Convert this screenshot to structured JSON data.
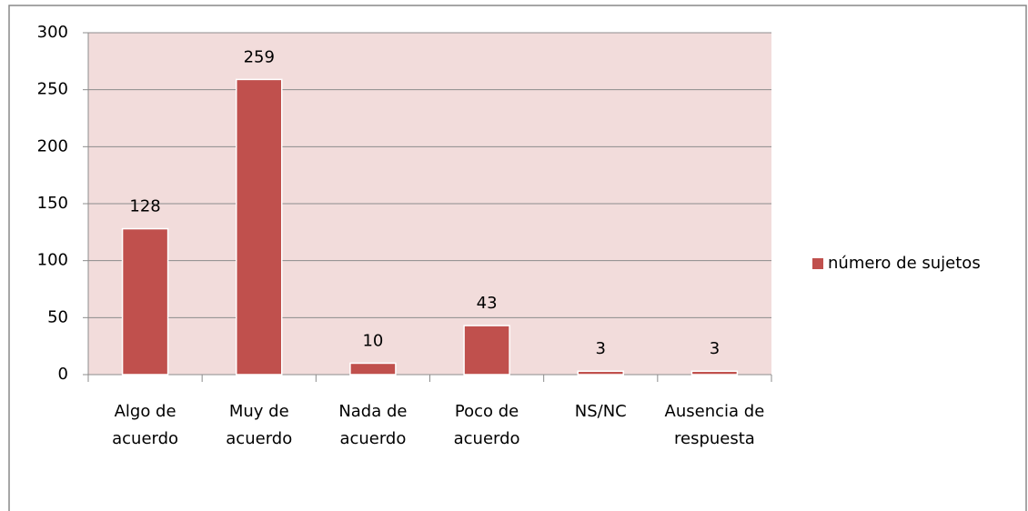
{
  "chart_data": {
    "type": "bar",
    "categories": [
      "Algo de acuerdo",
      "Muy de acuerdo",
      "Nada de acuerdo",
      "Poco de acuerdo",
      "NS/NC",
      "Ausencia de respuesta"
    ],
    "series": [
      {
        "name": "número de sujetos",
        "color": "#c0504d",
        "values": [
          128,
          259,
          10,
          43,
          3,
          3
        ]
      }
    ],
    "ylim": [
      0,
      300
    ],
    "yticks": [
      0,
      50,
      100,
      150,
      200,
      250,
      300
    ],
    "grid": true,
    "legend": "right"
  }
}
